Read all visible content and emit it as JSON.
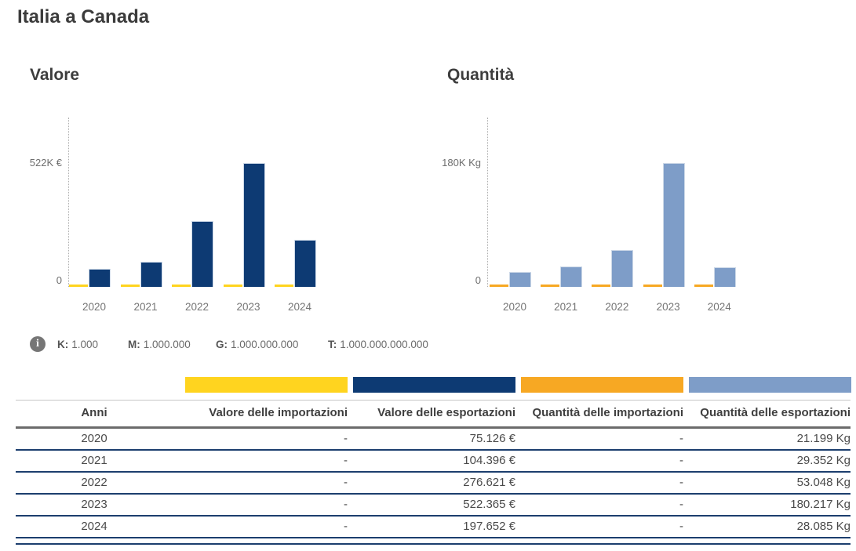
{
  "page": {
    "title": "Italia a Canada"
  },
  "info_legend": {
    "icon": "info-icon",
    "items": [
      {
        "label": "K:",
        "value": "1.000"
      },
      {
        "label": "M:",
        "value": "1.000.000"
      },
      {
        "label": "G:",
        "value": "1.000.000.000"
      },
      {
        "label": "T:",
        "value": "1.000.000.000.000"
      }
    ]
  },
  "colors": {
    "import_value": "#FFD41F",
    "export_value": "#0D3A73",
    "import_quantity": "#F7A823",
    "export_quantity": "#7E9DC8",
    "table_line": "#1C3E6E"
  },
  "chart_data": [
    {
      "type": "bar",
      "title": "Valore",
      "categories": [
        "2020",
        "2021",
        "2022",
        "2023",
        "2024"
      ],
      "series": [
        {
          "name": "Valore delle importazioni",
          "color_key": "import_value",
          "values": [
            0,
            0,
            0,
            0,
            0
          ]
        },
        {
          "name": "Valore delle esportazioni",
          "color_key": "export_value",
          "values": [
            75126,
            104396,
            276621,
            522365,
            197652
          ]
        }
      ],
      "unit": "€",
      "ylim": [
        0,
        522365
      ],
      "y_axis": {
        "top_tick_value": 522000,
        "top_tick_label": "522K €",
        "zero_label": "0"
      },
      "grid": false,
      "legend_position": "none"
    },
    {
      "type": "bar",
      "title": "Quantità",
      "categories": [
        "2020",
        "2021",
        "2022",
        "2023",
        "2024"
      ],
      "series": [
        {
          "name": "Quantità delle importazioni",
          "color_key": "import_quantity",
          "values": [
            0,
            0,
            0,
            0,
            0
          ]
        },
        {
          "name": "Quantità delle esportazioni",
          "color_key": "export_quantity",
          "values": [
            21199,
            29352,
            53048,
            180217,
            28085
          ]
        }
      ],
      "unit": "Kg",
      "ylim": [
        0,
        180217
      ],
      "y_axis": {
        "top_tick_value": 180000,
        "top_tick_label": "180K Kg",
        "zero_label": "0"
      },
      "grid": false,
      "legend_position": "none"
    }
  ],
  "table": {
    "columns": [
      {
        "label": "Anni",
        "align": "center",
        "swatch": null
      },
      {
        "label": "Valore delle importazioni",
        "align": "right",
        "swatch": "import_value"
      },
      {
        "label": "Valore delle esportazioni",
        "align": "right",
        "swatch": "export_value"
      },
      {
        "label": "Quantità delle importazioni",
        "align": "right",
        "swatch": "import_quantity"
      },
      {
        "label": "Quantità delle esportazioni",
        "align": "right",
        "swatch": "export_quantity"
      }
    ],
    "rows": [
      [
        "2020",
        "-",
        "75.126 €",
        "-",
        "21.199 Kg"
      ],
      [
        "2021",
        "-",
        "104.396 €",
        "-",
        "29.352 Kg"
      ],
      [
        "2022",
        "-",
        "276.621 €",
        "-",
        "53.048 Kg"
      ],
      [
        "2023",
        "-",
        "522.365 €",
        "-",
        "180.217 Kg"
      ],
      [
        "2024",
        "-",
        "197.652 €",
        "-",
        "28.085 Kg"
      ]
    ]
  }
}
